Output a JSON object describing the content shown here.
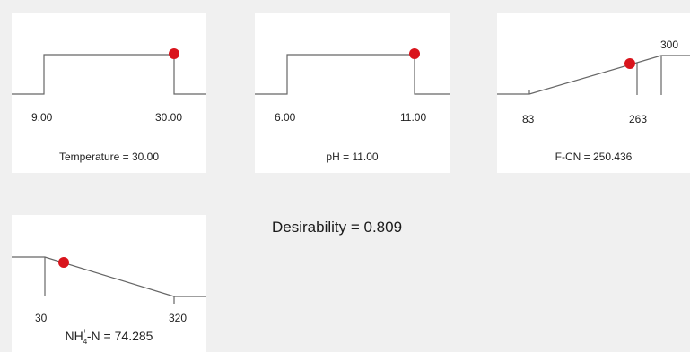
{
  "panels": [
    {
      "id": "temperature",
      "low_label": "9.00",
      "high_label": "30.00",
      "caption": "Temperature = 30.00"
    },
    {
      "id": "ph",
      "low_label": "6.00",
      "high_label": "11.00",
      "caption": "pH = 11.00"
    },
    {
      "id": "fcn",
      "low_label": "83",
      "mid_label": "263",
      "high_label": "300",
      "caption": "F-CN = 250.436"
    },
    {
      "id": "nh4n",
      "low_label": "30",
      "high_label": "320",
      "caption_prefix": "NH",
      "caption_sub": "4",
      "caption_sup": "+",
      "caption_suffix": "-N = 74.285"
    }
  ],
  "desirability": "Desirability = 0.809",
  "colors": {
    "marker": "#d9141c",
    "line": "#666666",
    "panel_bg": "#ffffff",
    "page_bg": "#f0f0f0"
  }
}
